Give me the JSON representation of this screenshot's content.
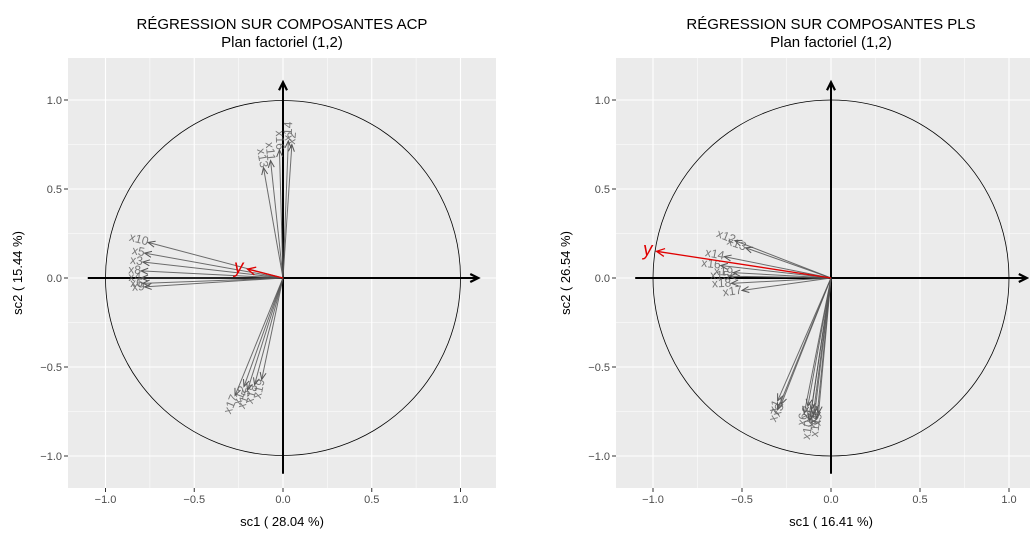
{
  "chart_data": [
    {
      "type": "scatter",
      "title": "RÉGRESSION SUR COMPOSANTES ACP",
      "subtitle": "Plan factoriel (1,2)",
      "xlabel": "sc1 ( 28.04 %)",
      "ylabel": "sc2 ( 15.44 %)",
      "xlim": [
        -1.2,
        1.2
      ],
      "ylim": [
        -1.2,
        1.2
      ],
      "xticks": [
        -1.0,
        -0.5,
        0.0,
        0.5,
        1.0
      ],
      "xtick_labels": [
        "−1.0",
        "−0.5",
        "0.0",
        "0.5",
        "1.0"
      ],
      "yticks": [
        -1.0,
        -0.5,
        0.0,
        0.5,
        1.0
      ],
      "ytick_labels": [
        "−1.0",
        "−0.5",
        "0.0",
        "0.5",
        "1.0"
      ],
      "grid": true,
      "unit_circle": true,
      "vectors": [
        {
          "name": "x14",
          "x": 0.03,
          "y": 0.77
        },
        {
          "name": "x2",
          "x": 0.05,
          "y": 0.75
        },
        {
          "name": "x11",
          "x": -0.07,
          "y": 0.66
        },
        {
          "name": "x13",
          "x": -0.11,
          "y": 0.62
        },
        {
          "name": "x16",
          "x": -0.02,
          "y": 0.72
        },
        {
          "name": "x10",
          "x": -0.76,
          "y": 0.2
        },
        {
          "name": "x5",
          "x": -0.78,
          "y": 0.14
        },
        {
          "name": "x3",
          "x": -0.79,
          "y": 0.09
        },
        {
          "name": "x8",
          "x": -0.8,
          "y": 0.04
        },
        {
          "name": "x4",
          "x": -0.8,
          "y": 0.0
        },
        {
          "name": "x6",
          "x": -0.79,
          "y": -0.03
        },
        {
          "name": "x9",
          "x": -0.78,
          "y": -0.05
        },
        {
          "name": "x17",
          "x": -0.27,
          "y": -0.66
        },
        {
          "name": "x15",
          "x": -0.2,
          "y": -0.63
        },
        {
          "name": "x18",
          "x": -0.16,
          "y": -0.6
        },
        {
          "name": "x12",
          "x": -0.22,
          "y": -0.61
        },
        {
          "name": "x19",
          "x": -0.12,
          "y": -0.57
        }
      ],
      "response": {
        "name": "y",
        "x": -0.2,
        "y": 0.05
      }
    },
    {
      "type": "scatter",
      "title": "RÉGRESSION SUR COMPOSANTES PLS",
      "subtitle": "Plan factoriel (1,2)",
      "xlabel": "sc1 ( 16.41 %)",
      "ylabel": "sc2 ( 26.54 %)",
      "xlim": [
        -1.2,
        1.2
      ],
      "ylim": [
        -1.2,
        1.2
      ],
      "xticks": [
        -1.0,
        -0.5,
        0.0,
        0.5,
        1.0
      ],
      "xtick_labels": [
        "−1.0",
        "−0.5",
        "0.0",
        "0.5",
        "1.0"
      ],
      "yticks": [
        -1.0,
        -0.5,
        0.0,
        0.5,
        1.0
      ],
      "ytick_labels": [
        "−1.0",
        "−0.5",
        "0.0",
        "0.5",
        "1.0"
      ],
      "grid": true,
      "unit_circle": true,
      "vectors": [
        {
          "name": "x12",
          "x": -0.54,
          "y": 0.21
        },
        {
          "name": "x13",
          "x": -0.48,
          "y": 0.17
        },
        {
          "name": "x14",
          "x": -0.6,
          "y": 0.12
        },
        {
          "name": "x16",
          "x": -0.62,
          "y": 0.07
        },
        {
          "name": "x19",
          "x": -0.55,
          "y": 0.03
        },
        {
          "name": "x15",
          "x": -0.57,
          "y": 0.01
        },
        {
          "name": "x18",
          "x": -0.56,
          "y": -0.03
        },
        {
          "name": "x17",
          "x": -0.5,
          "y": -0.07
        },
        {
          "name": "x1",
          "x": -0.3,
          "y": -0.69
        },
        {
          "name": "x3",
          "x": -0.28,
          "y": -0.71
        },
        {
          "name": "x7",
          "x": -0.3,
          "y": -0.74
        },
        {
          "name": "x2",
          "x": -0.13,
          "y": -0.72
        },
        {
          "name": "x4",
          "x": -0.11,
          "y": -0.74
        },
        {
          "name": "x5",
          "x": -0.09,
          "y": -0.75
        },
        {
          "name": "x6",
          "x": -0.15,
          "y": -0.76
        },
        {
          "name": "x8",
          "x": -0.1,
          "y": -0.77
        },
        {
          "name": "x9",
          "x": -0.07,
          "y": -0.76
        },
        {
          "name": "x10",
          "x": -0.12,
          "y": -0.8
        },
        {
          "name": "x11",
          "x": -0.08,
          "y": -0.79
        }
      ],
      "response": {
        "name": "y",
        "x": -0.98,
        "y": 0.15
      }
    }
  ]
}
